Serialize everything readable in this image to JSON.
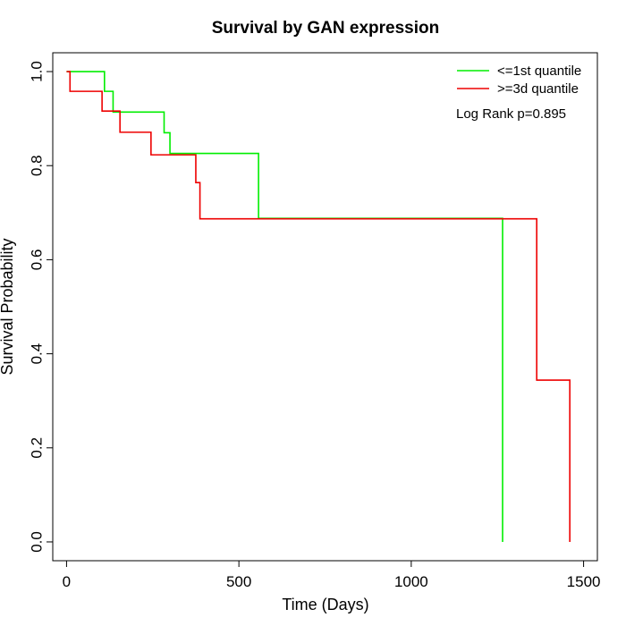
{
  "chart_data": {
    "type": "line",
    "title": "Survival by GAN expression",
    "xlabel": "Time (Days)",
    "ylabel": "Survival Probability",
    "xlim": [
      -40,
      1540
    ],
    "ylim": [
      -0.04,
      1.04
    ],
    "x_ticks": [
      {
        "value": 0,
        "label": "0"
      },
      {
        "value": 500,
        "label": "500"
      },
      {
        "value": 1000,
        "label": "1000"
      },
      {
        "value": 1500,
        "label": "1500"
      }
    ],
    "y_ticks": [
      {
        "value": 0.0,
        "label": "0.0"
      },
      {
        "value": 0.2,
        "label": "0.2"
      },
      {
        "value": 0.4,
        "label": "0.4"
      },
      {
        "value": 0.6,
        "label": "0.6"
      },
      {
        "value": 0.8,
        "label": "0.8"
      },
      {
        "value": 1.0,
        "label": "1.0"
      }
    ],
    "grid": false,
    "legend_position": "top-right",
    "annotation": "Log Rank p=0.895",
    "series": [
      {
        "name": "<=1st quantile",
        "color": "#00ee00",
        "steps": [
          [
            0,
            1.0
          ],
          [
            110,
            1.0
          ],
          [
            110,
            0.958
          ],
          [
            135,
            0.958
          ],
          [
            135,
            0.914
          ],
          [
            283,
            0.914
          ],
          [
            283,
            0.87
          ],
          [
            300,
            0.87
          ],
          [
            300,
            0.826
          ],
          [
            557,
            0.826
          ],
          [
            557,
            0.688
          ],
          [
            1265,
            0.688
          ],
          [
            1265,
            0.0
          ]
        ]
      },
      {
        "name": ">=3d quantile",
        "color": "#ee0000",
        "steps": [
          [
            0,
            1.0
          ],
          [
            10,
            1.0
          ],
          [
            10,
            0.958
          ],
          [
            103,
            0.958
          ],
          [
            103,
            0.916
          ],
          [
            155,
            0.916
          ],
          [
            155,
            0.871
          ],
          [
            245,
            0.871
          ],
          [
            245,
            0.823
          ],
          [
            375,
            0.823
          ],
          [
            375,
            0.764
          ],
          [
            387,
            0.764
          ],
          [
            387,
            0.687
          ],
          [
            1364,
            0.687
          ],
          [
            1364,
            0.344
          ],
          [
            1460,
            0.344
          ],
          [
            1460,
            0.0
          ]
        ]
      }
    ]
  }
}
